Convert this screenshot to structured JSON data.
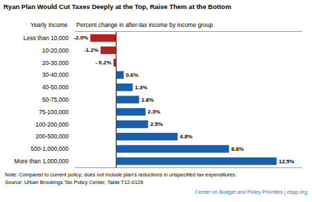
{
  "chart_data": {
    "type": "bar",
    "orientation": "horizontal",
    "title": "Ryan Plan Would Cut Taxes Deeply at the Top, Raise Them at the Bottom",
    "subtitle": "Percent change in after-tax income by income group",
    "ylabel": "Yearly Income",
    "categories": [
      "Less than 10,000",
      "10-20,000",
      "20-30,000",
      "30-40,000",
      "40-50,000",
      "50-75,000",
      "75-100,000",
      "100-200,000",
      "200-500,000",
      "500-1,000,000",
      "More than 1,000,000"
    ],
    "values": [
      -2.0,
      -1.2,
      -0.2,
      0.6,
      1.3,
      1.8,
      2.3,
      2.5,
      4.8,
      8.8,
      12.5
    ],
    "value_labels": [
      "-2.0%",
      "-1.2%",
      "- 0.2%",
      "0.6%",
      "1.3%",
      "1.8%",
      "2.3%",
      "2.5%",
      "4.8%",
      "8.8%",
      "12.5%"
    ],
    "data_labels": true,
    "colors": [
      "#b22222",
      "#b22222",
      "#b22222",
      "#1a5fa8",
      "#1a5fa8",
      "#1a5fa8",
      "#1a5fa8",
      "#1a5fa8",
      "#1a5fa8",
      "#1a5fa8",
      "#1a5fa8"
    ],
    "xlim": [
      -3.2,
      14.5
    ],
    "tick_labels": "y",
    "grid": false,
    "annotations": [
      "Note: Compared to current policy; does not include plan's reductions in unspecified tax expenditures.",
      "Source: Urban Brookings Tax Policy Center, Table T12-0126",
      "Center on Budget and Policy Priorities | cbpp.org"
    ]
  }
}
